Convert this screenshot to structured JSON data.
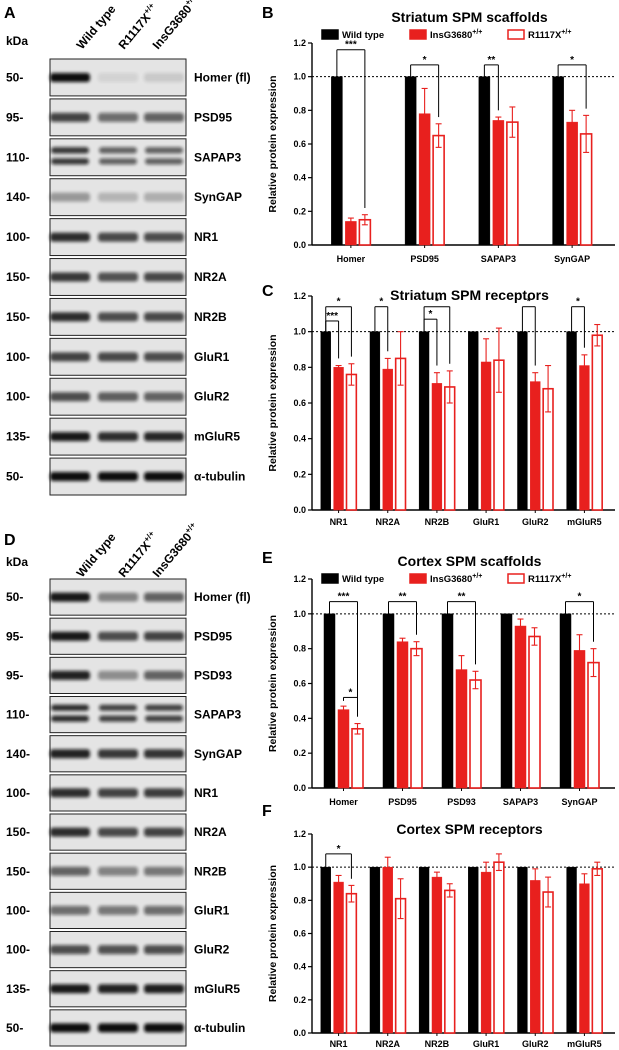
{
  "colors": {
    "wild_type": "#000000",
    "insg3680": "#e8201e",
    "r1117x": "#e8201e"
  },
  "panel_labels": {
    "A": "A",
    "B": "B",
    "C": "C",
    "D": "D",
    "E": "E",
    "F": "F"
  },
  "blots": [
    {
      "panel": "A",
      "kda_label": "kDa",
      "lanes": [
        "Wild type",
        "R1117X",
        "InsG3680"
      ],
      "lane_superscript": "+/+",
      "rows": [
        {
          "mw": "50-",
          "protein": "Homer (fl)",
          "intensity": [
            1.0,
            0.08,
            0.12
          ],
          "doublet": false
        },
        {
          "mw": "95-",
          "protein": "PSD95",
          "intensity": [
            0.75,
            0.55,
            0.6
          ],
          "doublet": false
        },
        {
          "mw": "110-",
          "protein": "SAPAP3",
          "intensity": [
            0.8,
            0.6,
            0.6
          ],
          "doublet": true
        },
        {
          "mw": "140-",
          "protein": "SynGAP",
          "intensity": [
            0.35,
            0.22,
            0.25
          ],
          "doublet": false
        },
        {
          "mw": "100-",
          "protein": "NR1",
          "intensity": [
            0.85,
            0.72,
            0.7
          ],
          "doublet": false
        },
        {
          "mw": "150-",
          "protein": "NR2A",
          "intensity": [
            0.8,
            0.68,
            0.72
          ],
          "doublet": false
        },
        {
          "mw": "150-",
          "protein": "NR2B",
          "intensity": [
            0.85,
            0.7,
            0.72
          ],
          "doublet": false
        },
        {
          "mw": "100-",
          "protein": "GluR1",
          "intensity": [
            0.75,
            0.72,
            0.7
          ],
          "doublet": false
        },
        {
          "mw": "100-",
          "protein": "GluR2",
          "intensity": [
            0.7,
            0.62,
            0.6
          ],
          "doublet": false
        },
        {
          "mw": "135-",
          "protein": "mGluR5",
          "intensity": [
            0.95,
            0.85,
            0.88
          ],
          "doublet": false
        },
        {
          "mw": "50-",
          "protein": "α-tubulin",
          "intensity": [
            1.0,
            1.0,
            1.0
          ],
          "doublet": false
        }
      ]
    },
    {
      "panel": "D",
      "kda_label": "kDa",
      "lanes": [
        "Wild type",
        "R1117X",
        "InsG3680"
      ],
      "lane_superscript": "+/+",
      "rows": [
        {
          "mw": "50-",
          "protein": "Homer (fl)",
          "intensity": [
            0.95,
            0.45,
            0.6
          ],
          "doublet": false
        },
        {
          "mw": "95-",
          "protein": "PSD95",
          "intensity": [
            0.95,
            0.7,
            0.75
          ],
          "doublet": false
        },
        {
          "mw": "95-",
          "protein": "PSD93",
          "intensity": [
            0.9,
            0.4,
            0.6
          ],
          "doublet": false
        },
        {
          "mw": "110-",
          "protein": "SAPAP3",
          "intensity": [
            0.85,
            0.75,
            0.75
          ],
          "doublet": true
        },
        {
          "mw": "140-",
          "protein": "SynGAP",
          "intensity": [
            0.9,
            0.8,
            0.82
          ],
          "doublet": false
        },
        {
          "mw": "100-",
          "protein": "NR1",
          "intensity": [
            0.85,
            0.75,
            0.78
          ],
          "doublet": false
        },
        {
          "mw": "150-",
          "protein": "NR2A",
          "intensity": [
            0.85,
            0.72,
            0.75
          ],
          "doublet": false
        },
        {
          "mw": "150-",
          "protein": "NR2B",
          "intensity": [
            0.6,
            0.45,
            0.5
          ],
          "doublet": false
        },
        {
          "mw": "100-",
          "protein": "GluR1",
          "intensity": [
            0.55,
            0.5,
            0.55
          ],
          "doublet": false
        },
        {
          "mw": "100-",
          "protein": "GluR2",
          "intensity": [
            0.7,
            0.68,
            0.7
          ],
          "doublet": false
        },
        {
          "mw": "135-",
          "protein": "mGluR5",
          "intensity": [
            0.95,
            0.9,
            0.92
          ],
          "doublet": false
        },
        {
          "mw": "50-",
          "protein": "α-tubulin",
          "intensity": [
            1.0,
            1.0,
            1.0
          ],
          "doublet": false
        }
      ]
    }
  ],
  "chart_data": [
    {
      "panel": "B",
      "type": "bar",
      "title": "Striatum SPM scaffolds",
      "ylabel": "Relative protein expression",
      "ylim": [
        0,
        1.2
      ],
      "yticks": [
        "0.0",
        "0.2",
        "0.4",
        "0.6",
        "0.8",
        "1.0",
        "1.2"
      ],
      "reference_line": 1.0,
      "legend": {
        "placement": "top",
        "entries": [
          {
            "name": "Wild type",
            "style": "filled-black"
          },
          {
            "name": "InsG3680",
            "superscript": "+/+",
            "style": "filled-red"
          },
          {
            "name": "R1117X",
            "superscript": "+/+",
            "style": "open-red"
          }
        ]
      },
      "categories": [
        "Homer",
        "PSD95",
        "SAPAP3",
        "SynGAP"
      ],
      "series": [
        {
          "name": "Wild type",
          "values": [
            1.0,
            1.0,
            1.0,
            1.0
          ],
          "errors": [
            0,
            0,
            0,
            0
          ]
        },
        {
          "name": "InsG3680+/+",
          "values": [
            0.14,
            0.78,
            0.74,
            0.73
          ],
          "errors": [
            0.02,
            0.15,
            0.02,
            0.07
          ]
        },
        {
          "name": "R1117X+/+",
          "values": [
            0.15,
            0.65,
            0.73,
            0.66
          ],
          "errors": [
            0.03,
            0.07,
            0.09,
            0.11
          ]
        }
      ],
      "significance": [
        {
          "cat": 0,
          "from": 0,
          "to": 2,
          "level": 1.16,
          "label": "***"
        },
        {
          "cat": 1,
          "from": 0,
          "to": 2,
          "level": 1.07,
          "label": "*"
        },
        {
          "cat": 2,
          "from": 0,
          "to": 1,
          "level": 1.07,
          "label": "**"
        },
        {
          "cat": 3,
          "from": 0,
          "to": 2,
          "level": 1.07,
          "label": "*"
        }
      ]
    },
    {
      "panel": "C",
      "type": "bar",
      "title": "Striatum SPM receptors",
      "ylabel": "Relative protein expression",
      "ylim": [
        0,
        1.2
      ],
      "yticks": [
        "0.0",
        "0.2",
        "0.4",
        "0.6",
        "0.8",
        "1.0",
        "1.2"
      ],
      "reference_line": 1.0,
      "categories": [
        "NR1",
        "NR2A",
        "NR2B",
        "GluR1",
        "GluR2",
        "mGluR5"
      ],
      "series": [
        {
          "name": "Wild type",
          "values": [
            1.0,
            1.0,
            1.0,
            1.0,
            1.0,
            1.0
          ],
          "errors": [
            0,
            0,
            0,
            0,
            0,
            0
          ]
        },
        {
          "name": "InsG3680+/+",
          "values": [
            0.8,
            0.79,
            0.71,
            0.83,
            0.72,
            0.81
          ],
          "errors": [
            0.01,
            0.06,
            0.06,
            0.13,
            0.05,
            0.06
          ]
        },
        {
          "name": "R1117X+/+",
          "values": [
            0.76,
            0.85,
            0.69,
            0.84,
            0.68,
            0.98
          ],
          "errors": [
            0.06,
            0.15,
            0.09,
            0.18,
            0.13,
            0.06
          ]
        }
      ],
      "significance": [
        {
          "cat": 0,
          "from": 0,
          "to": 2,
          "level": 1.14,
          "label": "*"
        },
        {
          "cat": 0,
          "from": 0,
          "to": 1,
          "level": 1.06,
          "label": "***"
        },
        {
          "cat": 1,
          "from": 0,
          "to": 1,
          "level": 1.14,
          "label": "*"
        },
        {
          "cat": 2,
          "from": 0,
          "to": 2,
          "level": 1.14,
          "label": "*"
        },
        {
          "cat": 2,
          "from": 0,
          "to": 1,
          "level": 1.07,
          "label": "*"
        },
        {
          "cat": 4,
          "from": 0,
          "to": 1,
          "level": 1.14,
          "label": "*"
        },
        {
          "cat": 5,
          "from": 0,
          "to": 1,
          "level": 1.14,
          "label": "*"
        }
      ]
    },
    {
      "panel": "E",
      "type": "bar",
      "title": "Cortex SPM scaffolds",
      "ylabel": "Relative protein expression",
      "ylim": [
        0,
        1.2
      ],
      "yticks": [
        "0.0",
        "0.2",
        "0.4",
        "0.6",
        "0.8",
        "1.0",
        "1.2"
      ],
      "reference_line": 1.0,
      "legend": {
        "placement": "top",
        "entries": [
          {
            "name": "Wild type",
            "style": "filled-black"
          },
          {
            "name": "InsG3680",
            "superscript": "+/+",
            "style": "filled-red"
          },
          {
            "name": "R1117X",
            "superscript": "+/+",
            "style": "open-red"
          }
        ]
      },
      "categories": [
        "Homer",
        "PSD95",
        "PSD93",
        "SAPAP3",
        "SynGAP"
      ],
      "series": [
        {
          "name": "Wild type",
          "values": [
            1.0,
            1.0,
            1.0,
            1.0,
            1.0
          ],
          "errors": [
            0,
            0,
            0,
            0,
            0
          ]
        },
        {
          "name": "InsG3680+/+",
          "values": [
            0.45,
            0.84,
            0.68,
            0.93,
            0.79
          ],
          "errors": [
            0.02,
            0.02,
            0.08,
            0.04,
            0.09
          ]
        },
        {
          "name": "R1117X+/+",
          "values": [
            0.34,
            0.8,
            0.62,
            0.87,
            0.72
          ],
          "errors": [
            0.03,
            0.04,
            0.05,
            0.05,
            0.08
          ]
        }
      ],
      "significance": [
        {
          "cat": 0,
          "from": 0,
          "to": 2,
          "level": 1.07,
          "label": "***"
        },
        {
          "cat": 0,
          "from": 1,
          "to": 2,
          "level": 0.52,
          "label": "*"
        },
        {
          "cat": 1,
          "from": 0,
          "to": 2,
          "level": 1.07,
          "label": "**"
        },
        {
          "cat": 2,
          "from": 0,
          "to": 2,
          "level": 1.07,
          "label": "**"
        },
        {
          "cat": 4,
          "from": 0,
          "to": 2,
          "level": 1.07,
          "label": "*"
        }
      ]
    },
    {
      "panel": "F",
      "type": "bar",
      "title": "Cortex SPM receptors",
      "ylabel": "Relative protein expression",
      "ylim": [
        0,
        1.2
      ],
      "yticks": [
        "0.0",
        "0.2",
        "0.4",
        "0.6",
        "0.8",
        "1.0",
        "1.2"
      ],
      "reference_line": 1.0,
      "categories": [
        "NR1",
        "NR2A",
        "NR2B",
        "GluR1",
        "GluR2",
        "mGluR5"
      ],
      "series": [
        {
          "name": "Wild type",
          "values": [
            1.0,
            1.0,
            1.0,
            1.0,
            1.0,
            1.0
          ],
          "errors": [
            0,
            0,
            0,
            0,
            0,
            0
          ]
        },
        {
          "name": "InsG3680+/+",
          "values": [
            0.91,
            1.0,
            0.94,
            0.97,
            0.92,
            0.9
          ],
          "errors": [
            0.04,
            0.06,
            0.03,
            0.06,
            0.07,
            0.06
          ]
        },
        {
          "name": "R1117X+/+",
          "values": [
            0.84,
            0.81,
            0.86,
            1.03,
            0.85,
            0.99
          ],
          "errors": [
            0.05,
            0.12,
            0.04,
            0.05,
            0.09,
            0.04
          ]
        }
      ],
      "significance": [
        {
          "cat": 0,
          "from": 0,
          "to": 2,
          "level": 1.08,
          "label": "*"
        }
      ]
    }
  ]
}
